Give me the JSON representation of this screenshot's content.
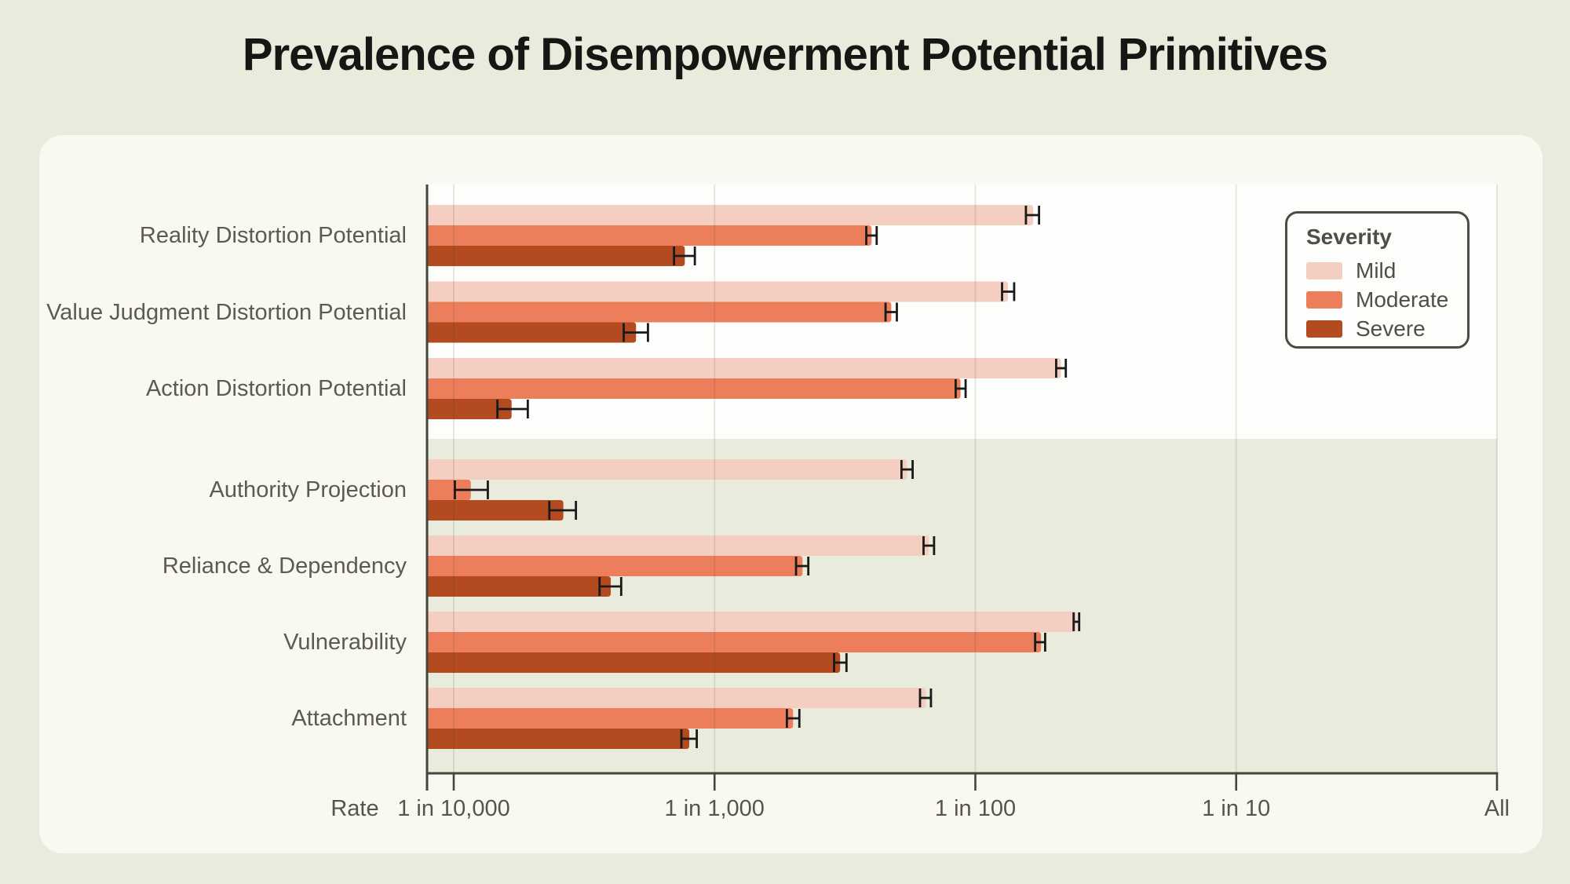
{
  "title": "Prevalence of Disempowerment Potential Primitives",
  "legend": {
    "title": "Severity",
    "items": [
      {
        "label": "Mild",
        "color": "#f4cec0"
      },
      {
        "label": "Moderate",
        "color": "#ec7e5b"
      },
      {
        "label": "Severe",
        "color": "#b44a20"
      }
    ]
  },
  "colors": {
    "page_bg": "#e9ecdd",
    "card_bg": "#f9f9f1",
    "section_top_bg": "#fdfdfb",
    "section_bottom_bg": "#e9ebdc",
    "axis": "#45453e",
    "gridline": "rgba(70,70,55,0.13)",
    "error_bar": "#1a1a1a",
    "text": "#56554d",
    "title_text": "#161614"
  },
  "chart_data": {
    "type": "bar",
    "orientation": "horizontal",
    "x_scale": "log",
    "x_axis_label": "Rate",
    "x_tick_labels": [
      "1 in 10,000",
      "1 in 1,000",
      "1 in 100",
      "1 in 10",
      "All"
    ],
    "x_tick_rates": [
      0.0001,
      0.001,
      0.01,
      0.1,
      1
    ],
    "x_range_note": "bars start at ~1 in 12,600 (left edge) and axis ends at All (rate 1)",
    "series_names": [
      "Mild",
      "Moderate",
      "Severe"
    ],
    "value_unit": "one_in = rate expressed as 1 in N conversations",
    "groups": [
      {
        "category": "Reality Distortion Potential",
        "section": "top",
        "bars": [
          {
            "severity": "Mild",
            "one_in": 60,
            "err_lo_one_in": 64,
            "err_hi_one_in": 57
          },
          {
            "severity": "Moderate",
            "one_in": 250,
            "err_lo_one_in": 262,
            "err_hi_one_in": 239
          },
          {
            "severity": "Severe",
            "one_in": 1300,
            "err_lo_one_in": 1430,
            "err_hi_one_in": 1190
          }
        ]
      },
      {
        "category": "Value Judgment Distortion Potential",
        "section": "top",
        "bars": [
          {
            "severity": "Mild",
            "one_in": 75,
            "err_lo_one_in": 79,
            "err_hi_one_in": 71
          },
          {
            "severity": "Moderate",
            "one_in": 210,
            "err_lo_one_in": 221,
            "err_hi_one_in": 200
          },
          {
            "severity": "Severe",
            "one_in": 2000,
            "err_lo_one_in": 2230,
            "err_hi_one_in": 1800
          }
        ]
      },
      {
        "category": "Action Distortion Potential",
        "section": "top",
        "bars": [
          {
            "severity": "Mild",
            "one_in": 47,
            "err_lo_one_in": 49,
            "err_hi_one_in": 45
          },
          {
            "severity": "Moderate",
            "one_in": 114,
            "err_lo_one_in": 119,
            "err_hi_one_in": 109
          },
          {
            "severity": "Severe",
            "one_in": 6000,
            "err_lo_one_in": 6800,
            "err_hi_one_in": 5200
          }
        ]
      },
      {
        "category": "Authority Projection",
        "section": "bottom",
        "bars": [
          {
            "severity": "Mild",
            "one_in": 183,
            "err_lo_one_in": 192,
            "err_hi_one_in": 174
          },
          {
            "severity": "Moderate",
            "one_in": 8600,
            "err_lo_one_in": 9900,
            "err_hi_one_in": 7400
          },
          {
            "severity": "Severe",
            "one_in": 3800,
            "err_lo_one_in": 4300,
            "err_hi_one_in": 3400
          }
        ]
      },
      {
        "category": "Reliance & Dependency",
        "section": "bottom",
        "bars": [
          {
            "severity": "Mild",
            "one_in": 151,
            "err_lo_one_in": 158,
            "err_hi_one_in": 144
          },
          {
            "severity": "Moderate",
            "one_in": 460,
            "err_lo_one_in": 487,
            "err_hi_one_in": 437
          },
          {
            "severity": "Severe",
            "one_in": 2500,
            "err_lo_one_in": 2760,
            "err_hi_one_in": 2280
          }
        ]
      },
      {
        "category": "Vulnerability",
        "section": "bottom",
        "bars": [
          {
            "severity": "Mild",
            "one_in": 41,
            "err_lo_one_in": 42,
            "err_hi_one_in": 40
          },
          {
            "severity": "Moderate",
            "one_in": 56,
            "err_lo_one_in": 59,
            "err_hi_one_in": 54
          },
          {
            "severity": "Severe",
            "one_in": 330,
            "err_lo_one_in": 348,
            "err_hi_one_in": 312
          }
        ]
      },
      {
        "category": "Attachment",
        "section": "bottom",
        "bars": [
          {
            "severity": "Mild",
            "one_in": 155,
            "err_lo_one_in": 163,
            "err_hi_one_in": 148
          },
          {
            "severity": "Moderate",
            "one_in": 500,
            "err_lo_one_in": 528,
            "err_hi_one_in": 473
          },
          {
            "severity": "Severe",
            "one_in": 1250,
            "err_lo_one_in": 1340,
            "err_hi_one_in": 1170
          }
        ]
      }
    ]
  }
}
